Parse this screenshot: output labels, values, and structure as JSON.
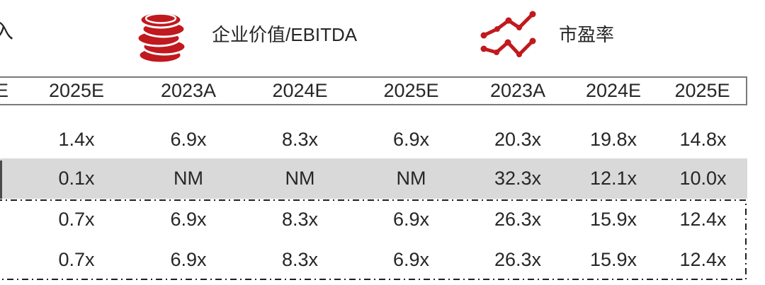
{
  "colors": {
    "red": "#c0191e",
    "row_highlight": "#d9d9d9",
    "border_gray": "#7a7a7a",
    "dash_line": "#1f1f1f",
    "text": "#262626"
  },
  "legend": {
    "partial_left_label": "入",
    "groups": [
      {
        "icon": "coins-icon",
        "label": "企业价值/EBITDA"
      },
      {
        "icon": "line-chart-icon",
        "label": "市盈率"
      }
    ]
  },
  "table": {
    "partial_header_fragment": "E",
    "headers": [
      "2025E",
      "2023A",
      "2024E",
      "2025E",
      "2023A",
      "2024E",
      "2025E"
    ],
    "rows": [
      {
        "highlight": false,
        "values": [
          "1.4x",
          "6.9x",
          "8.3x",
          "6.9x",
          "20.3x",
          "19.8x",
          "14.8x"
        ]
      },
      {
        "highlight": true,
        "values": [
          "0.1x",
          "NM",
          "NM",
          "NM",
          "32.3x",
          "12.1x",
          "10.0x"
        ]
      },
      {
        "highlight": false,
        "values": [
          "0.7x",
          "6.9x",
          "8.3x",
          "6.9x",
          "26.3x",
          "15.9x",
          "12.4x"
        ]
      },
      {
        "highlight": false,
        "values": [
          "0.7x",
          "6.9x",
          "8.3x",
          "6.9x",
          "26.3x",
          "15.9x",
          "12.4x"
        ]
      }
    ]
  }
}
